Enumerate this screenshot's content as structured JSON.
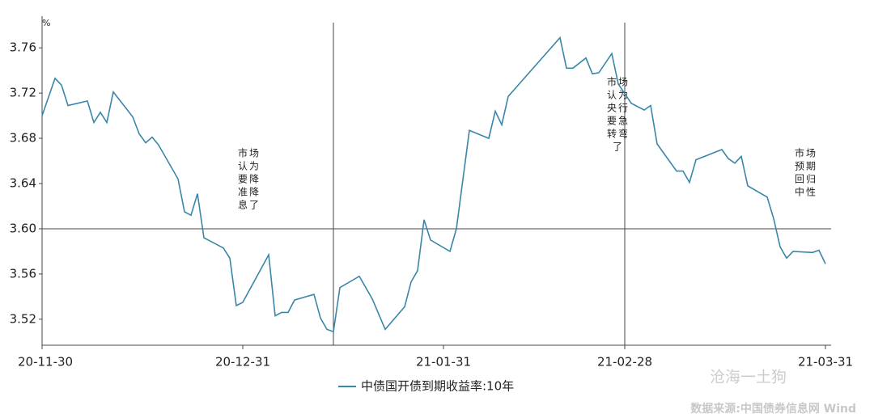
{
  "chart_data": {
    "type": "line",
    "y_unit": "%",
    "x": [
      "20-11-30",
      "20-12-02",
      "20-12-03",
      "20-12-04",
      "20-12-07",
      "20-12-08",
      "20-12-09",
      "20-12-10",
      "20-12-11",
      "20-12-14",
      "20-12-15",
      "20-12-16",
      "20-12-17",
      "20-12-18",
      "20-12-21",
      "20-12-22",
      "20-12-23",
      "20-12-24",
      "20-12-25",
      "20-12-28",
      "20-12-29",
      "20-12-30",
      "20-12-31",
      "21-01-04",
      "21-01-05",
      "21-01-06",
      "21-01-07",
      "21-01-08",
      "21-01-11",
      "21-01-12",
      "21-01-13",
      "21-01-14",
      "21-01-15",
      "21-01-18",
      "21-01-20",
      "21-01-22",
      "21-01-25",
      "21-01-26",
      "21-01-27",
      "21-01-28",
      "21-01-29",
      "21-02-01",
      "21-02-02",
      "21-02-04",
      "21-02-07",
      "21-02-08",
      "21-02-09",
      "21-02-10",
      "21-02-18",
      "21-02-19",
      "21-02-20",
      "21-02-22",
      "21-02-23",
      "21-02-24",
      "21-02-26",
      "21-02-27",
      "21-03-01",
      "21-03-03",
      "21-03-04",
      "21-03-05",
      "21-03-08",
      "21-03-09",
      "21-03-10",
      "21-03-11",
      "21-03-15",
      "21-03-16",
      "21-03-17",
      "21-03-18",
      "21-03-19",
      "21-03-22",
      "21-03-23",
      "21-03-24",
      "21-03-25",
      "21-03-26",
      "21-03-29",
      "21-03-30",
      "21-03-31"
    ],
    "series": [
      {
        "name": "中债国开债到期收益率:10年",
        "color": "#3a86a8",
        "values": [
          3.7,
          3.733,
          3.727,
          3.709,
          3.713,
          3.694,
          3.703,
          3.694,
          3.721,
          3.699,
          3.684,
          3.676,
          3.681,
          3.674,
          3.644,
          3.615,
          3.612,
          3.631,
          3.592,
          3.583,
          3.574,
          3.532,
          3.535,
          3.577,
          3.523,
          3.526,
          3.526,
          3.537,
          3.542,
          3.521,
          3.511,
          3.509,
          3.548,
          3.558,
          3.538,
          3.511,
          3.531,
          3.553,
          3.563,
          3.608,
          3.59,
          3.58,
          3.6,
          3.687,
          3.68,
          3.704,
          3.692,
          3.717,
          3.769,
          3.742,
          3.742,
          3.751,
          3.737,
          3.738,
          3.755,
          3.728,
          3.711,
          3.705,
          3.709,
          3.675,
          3.651,
          3.651,
          3.641,
          3.661,
          3.67,
          3.662,
          3.658,
          3.664,
          3.638,
          3.628,
          3.609,
          3.584,
          3.574,
          3.58,
          3.579,
          3.581,
          3.569
        ]
      }
    ],
    "xlim": [
      "20-11-30",
      "21-03-31"
    ],
    "xticks": [
      "20-11-30",
      "20-12-31",
      "21-01-31",
      "21-02-28",
      "21-03-31"
    ],
    "ylim": [
      3.497,
      3.788
    ],
    "yticks": [
      3.52,
      3.56,
      {
        "value": 3.6,
        "label": "3.60"
      },
      3.64,
      3.68,
      3.72,
      3.76
    ],
    "hlines": [
      3.6
    ],
    "vlines": [
      "21-01-14",
      "21-02-28"
    ],
    "annotations": [
      {
        "x": "21-01-01",
        "lines": [
          "市场",
          "认为",
          "要降",
          "准降",
          "息了"
        ]
      },
      {
        "x": "21-02-27",
        "lines": [
          "市场",
          "认为",
          "央行",
          "要急",
          "转弯",
          "了"
        ]
      },
      {
        "x": "21-03-28",
        "lines": [
          "市场",
          "预期",
          "回归",
          "中性"
        ]
      }
    ],
    "watermark": "沧海一土狗",
    "source": "数据来源:中国债券信息网 Wind"
  }
}
